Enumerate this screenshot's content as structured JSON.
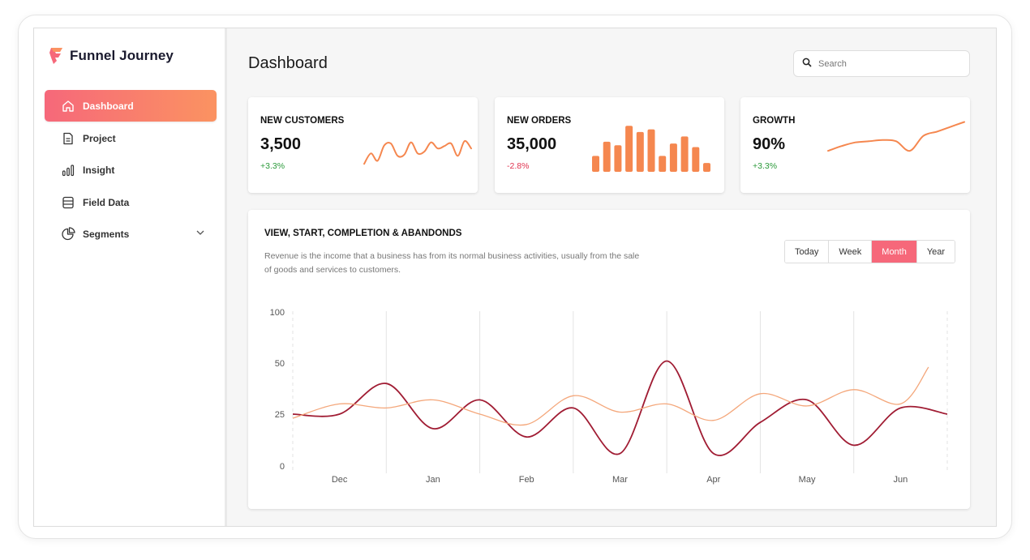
{
  "app": {
    "name": "Funnel Journey"
  },
  "sidebar": {
    "items": [
      {
        "label": "Dashboard",
        "icon": "home-icon",
        "active": true
      },
      {
        "label": "Project",
        "icon": "document-icon"
      },
      {
        "label": "Insight",
        "icon": "bar-chart-icon"
      },
      {
        "label": "Field Data",
        "icon": "database-icon"
      },
      {
        "label": "Segments",
        "icon": "pie-chart-icon",
        "expandable": true
      }
    ]
  },
  "header": {
    "title": "Dashboard",
    "search": {
      "placeholder": "Search",
      "value": ""
    }
  },
  "stats": [
    {
      "title": "NEW CUSTOMERS",
      "value": "3,500",
      "change": "+3.3%",
      "trend": "up"
    },
    {
      "title": "NEW ORDERS",
      "value": "35,000",
      "change": "-2.8%",
      "trend": "down"
    },
    {
      "title": "GROWTH",
      "value": "90%",
      "change": "+3.3%",
      "trend": "up"
    }
  ],
  "main_card": {
    "title": "VIEW, START, COMPLETION & ABANDONDS",
    "description": "Revenue is the income that a business has from its normal business activities, usually from the sale of goods and services to customers.",
    "periods": [
      "Today",
      "Week",
      "Month",
      "Year"
    ],
    "selected_period": "Month"
  },
  "colors": {
    "accent_start": "#f6687a",
    "accent_end": "#fb9361",
    "orange": "#f5874f",
    "dark_red": "#a01c33",
    "light_orange": "#f4a77b",
    "positive": "#2b9a3a",
    "negative": "#e0334f"
  },
  "chart_data": [
    {
      "type": "line",
      "series": [
        {
          "values": [
            5,
            22,
            10,
            35,
            38,
            18,
            20,
            40,
            22,
            25,
            40,
            30,
            34,
            38,
            18,
            42,
            30
          ]
        }
      ],
      "ylim": [
        0,
        50
      ]
    },
    {
      "type": "bar",
      "values": [
        18,
        34,
        30,
        52,
        45,
        48,
        18,
        32,
        40,
        28,
        10
      ],
      "ylim": [
        0,
        55
      ]
    },
    {
      "type": "line",
      "series": [
        {
          "values": [
            20,
            28,
            34,
            36,
            38,
            36,
            20,
            45,
            52,
            60,
            68
          ]
        }
      ],
      "ylim": [
        0,
        70
      ]
    },
    {
      "type": "line",
      "title": "VIEW, START, COMPLETION & ABANDONDS",
      "categories": [
        "Dec",
        "Jan",
        "Feb",
        "Mar",
        "Apr",
        "May",
        "Jun"
      ],
      "yticks": [
        0,
        25,
        50,
        100
      ],
      "ylim": [
        0,
        100
      ],
      "grid": true,
      "series": [
        {
          "color": "#a01c33",
          "x": [
            0,
            0.5,
            1,
            1.5,
            2,
            2.5,
            3,
            3.5,
            4,
            4.5,
            5,
            5.5,
            6,
            6.5,
            7
          ],
          "values": [
            25,
            25,
            40,
            18,
            32,
            14,
            28,
            6,
            52,
            6,
            21,
            32,
            10,
            28,
            25
          ]
        },
        {
          "color": "#f4a77b",
          "x": [
            0,
            0.5,
            1,
            1.5,
            2,
            2.5,
            3,
            3.5,
            4,
            4.5,
            5,
            5.5,
            6,
            6.5,
            6.8
          ],
          "values": [
            23,
            30,
            28,
            32,
            25,
            20,
            34,
            26,
            30,
            22,
            35,
            29,
            37,
            30,
            48
          ]
        }
      ]
    }
  ]
}
